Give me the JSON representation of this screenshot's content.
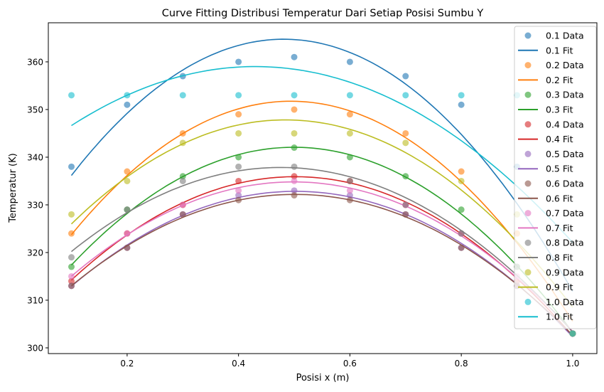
{
  "chart_data": {
    "type": "scatter",
    "title": "Curve Fitting Distribusi Temperatur Dari Setiap Posisi Sumbu Y",
    "xlabel": "Posisi x (m)",
    "ylabel": "Temperatur (K)",
    "xlim": [
      0.0585,
      1.0435
    ],
    "ylim": [
      298.8,
      368.2
    ],
    "xticks": [
      0.2,
      0.4,
      0.6,
      0.8,
      1.0
    ],
    "xtick_labels": [
      "0.2",
      "0.4",
      "0.6",
      "0.8",
      "1.0"
    ],
    "yticks": [
      300,
      310,
      320,
      330,
      340,
      350,
      360
    ],
    "ytick_labels": [
      "300",
      "310",
      "320",
      "330",
      "340",
      "350",
      "360"
    ],
    "grid": false,
    "legend_position": "top-right",
    "fit": "quadratic",
    "x": [
      0.1,
      0.2,
      0.3,
      0.4,
      0.5,
      0.6,
      0.7,
      0.8,
      0.9,
      1.0
    ],
    "series": [
      {
        "name": "0.1",
        "data_label": "0.1 Data",
        "fit_label": "0.1 Fit",
        "color": "#1f77b4",
        "values": [
          338,
          351,
          357,
          360,
          361,
          360,
          357,
          351,
          338,
          303
        ]
      },
      {
        "name": "0.2",
        "data_label": "0.2 Data",
        "fit_label": "0.2 Fit",
        "color": "#ff7f0e",
        "values": [
          324,
          337,
          345,
          349,
          350,
          349,
          345,
          337,
          324,
          303
        ]
      },
      {
        "name": "0.3",
        "data_label": "0.3 Data",
        "fit_label": "0.3 Fit",
        "color": "#2ca02c",
        "values": [
          317,
          329,
          336,
          340,
          342,
          340,
          336,
          329,
          317,
          303
        ]
      },
      {
        "name": "0.4",
        "data_label": "0.4 Data",
        "fit_label": "0.4 Fit",
        "color": "#d62728",
        "values": [
          314,
          324,
          330,
          335,
          336,
          335,
          330,
          324,
          314,
          303
        ]
      },
      {
        "name": "0.5",
        "data_label": "0.5 Data",
        "fit_label": "0.5 Fit",
        "color": "#9467bd",
        "values": [
          313,
          321,
          328,
          332,
          333,
          332,
          328,
          321,
          313,
          303
        ]
      },
      {
        "name": "0.6",
        "data_label": "0.6 Data",
        "fit_label": "0.6 Fit",
        "color": "#8c564b",
        "values": [
          313,
          321,
          328,
          331,
          332,
          331,
          328,
          321,
          313,
          303
        ]
      },
      {
        "name": "0.7",
        "data_label": "0.7 Data",
        "fit_label": "0.7 Fit",
        "color": "#e377c2",
        "values": [
          315,
          324,
          330,
          333,
          335,
          333,
          330,
          324,
          315,
          303
        ]
      },
      {
        "name": "0.8",
        "data_label": "0.8 Data",
        "fit_label": "0.8 Fit",
        "color": "#7f7f7f",
        "values": [
          319,
          329,
          335,
          338,
          338,
          335,
          330,
          324,
          317,
          303
        ]
      },
      {
        "name": "0.9",
        "data_label": "0.9 Data",
        "fit_label": "0.9 Fit",
        "color": "#bcbd22",
        "values": [
          328,
          335,
          343,
          345,
          345,
          345,
          343,
          335,
          328,
          303
        ]
      },
      {
        "name": "1.0",
        "data_label": "1.0 Data",
        "fit_label": "1.0 Fit",
        "color": "#17becf",
        "values": [
          353,
          353,
          353,
          353,
          353,
          353,
          353,
          353,
          353,
          303
        ]
      }
    ]
  }
}
